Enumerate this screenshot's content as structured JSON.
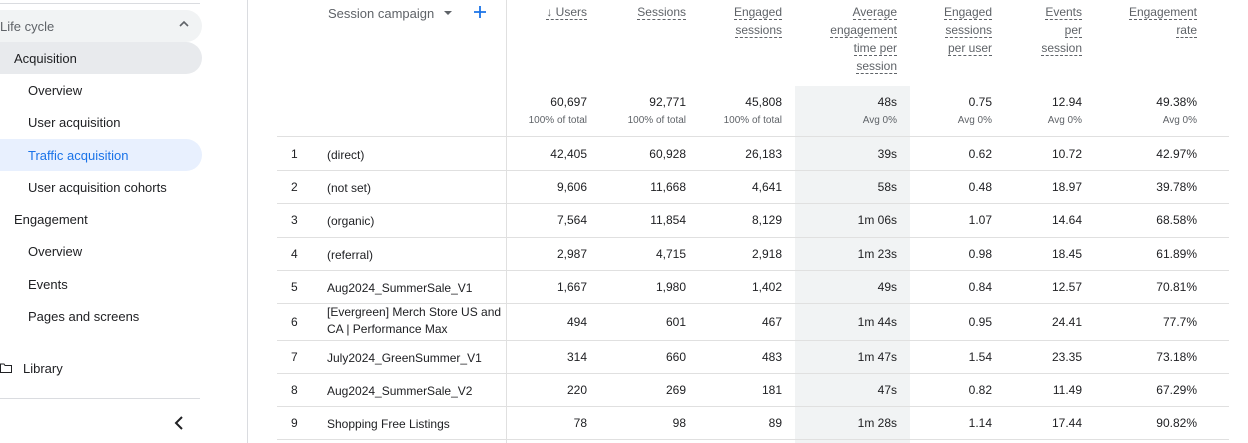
{
  "sidebar": {
    "section_title": "Life cycle",
    "items": [
      {
        "label": "Acquisition"
      },
      {
        "label": "Overview"
      },
      {
        "label": "User acquisition"
      },
      {
        "label": "Traffic acquisition"
      },
      {
        "label": "User acquisition cohorts"
      },
      {
        "label": "Engagement"
      },
      {
        "label": "Overview"
      },
      {
        "label": "Events"
      },
      {
        "label": "Pages and screens"
      },
      {
        "label": "Library"
      }
    ]
  },
  "table": {
    "dimension_header": "Session campaign",
    "headers": [
      [
        "↓ Users"
      ],
      [
        "Sessions"
      ],
      [
        "Engaged",
        "sessions"
      ],
      [
        "Average",
        "engagement",
        "time per",
        "session"
      ],
      [
        "Engaged",
        "sessions",
        "per user"
      ],
      [
        "Events",
        "per",
        "session"
      ],
      [
        "Engagement",
        "rate"
      ]
    ],
    "totals": [
      "60,697",
      "92,771",
      "45,808",
      "48s",
      "0.75",
      "12.94",
      "49.38%"
    ],
    "totals_sub": [
      "100% of total",
      "100% of total",
      "100% of total",
      "Avg 0%",
      "Avg 0%",
      "Avg 0%",
      "Avg 0%"
    ],
    "rows": [
      {
        "idx": "1",
        "name": "(direct)",
        "vals": [
          "42,405",
          "60,928",
          "26,183",
          "39s",
          "0.62",
          "10.72",
          "42.97%"
        ]
      },
      {
        "idx": "2",
        "name": "(not set)",
        "vals": [
          "9,606",
          "11,668",
          "4,641",
          "58s",
          "0.48",
          "18.97",
          "39.78%"
        ]
      },
      {
        "idx": "3",
        "name": "(organic)",
        "vals": [
          "7,564",
          "11,854",
          "8,129",
          "1m 06s",
          "1.07",
          "14.64",
          "68.58%"
        ]
      },
      {
        "idx": "4",
        "name": "(referral)",
        "vals": [
          "2,987",
          "4,715",
          "2,918",
          "1m 23s",
          "0.98",
          "18.45",
          "61.89%"
        ]
      },
      {
        "idx": "5",
        "name": "Aug2024_SummerSale_V1",
        "vals": [
          "1,667",
          "1,980",
          "1,402",
          "49s",
          "0.84",
          "12.57",
          "70.81%"
        ]
      },
      {
        "idx": "6",
        "name": "[Evergreen] Merch Store US and CA | Performance Max",
        "vals": [
          "494",
          "601",
          "467",
          "1m 44s",
          "0.95",
          "24.41",
          "77.7%"
        ]
      },
      {
        "idx": "7",
        "name": "July2024_GreenSummer_V1",
        "vals": [
          "314",
          "660",
          "483",
          "1m 47s",
          "1.54",
          "23.35",
          "73.18%"
        ]
      },
      {
        "idx": "8",
        "name": "Aug2024_SummerSale_V2",
        "vals": [
          "220",
          "269",
          "181",
          "47s",
          "0.82",
          "11.49",
          "67.29%"
        ]
      },
      {
        "idx": "9",
        "name": "Shopping Free Listings",
        "vals": [
          "78",
          "98",
          "89",
          "1m 28s",
          "1.14",
          "17.44",
          "90.82%"
        ]
      }
    ]
  },
  "colors": {
    "accent": "#1a73e8",
    "selected_bg": "#e8f0fe",
    "highlight_col": "#f1f3f4"
  }
}
